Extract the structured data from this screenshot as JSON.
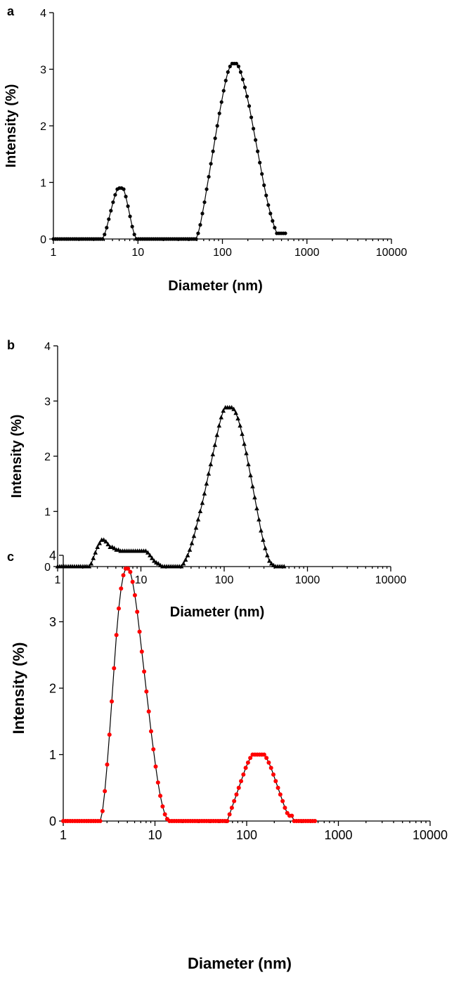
{
  "chart_data": [
    {
      "type": "line",
      "panel_label": "a",
      "xlabel": "Diameter (nm)",
      "ylabel": "Intensity (%)",
      "xscale": "log",
      "xlim": [
        1,
        10000
      ],
      "ylim": [
        0,
        4
      ],
      "xticks": [
        "1",
        "10",
        "100",
        "1000",
        "10000"
      ],
      "yticks": [
        "0",
        "1",
        "2",
        "3",
        "4"
      ],
      "marker": "circle",
      "marker_color": "#000000",
      "line_color": "#000000",
      "series": [
        {
          "x": [
            1.0,
            1.06,
            1.12,
            1.19,
            1.26,
            1.34,
            1.42,
            1.5,
            1.59,
            1.69,
            1.79,
            1.89,
            2.01,
            2.13,
            2.25,
            2.39,
            2.53,
            2.68,
            2.84,
            3.01,
            3.19,
            3.38,
            3.58,
            3.8,
            4.03,
            4.27,
            4.52,
            4.79,
            5.08,
            5.38,
            5.7,
            6.04,
            6.4,
            6.79,
            7.19,
            7.62,
            8.07,
            8.56,
            9.07,
            9.61,
            10.18,
            10.79,
            11.43,
            12.12,
            12.84,
            13.6,
            14.42,
            15.28,
            16.19,
            17.15,
            18.18,
            19.26,
            20.41,
            21.63,
            22.92,
            24.29,
            25.74,
            27.27,
            28.9,
            30.62,
            32.45,
            34.39,
            36.44,
            38.61,
            40.91,
            43.35,
            45.94,
            48.68,
            51.58,
            54.66,
            57.92,
            61.37,
            65.03,
            68.91,
            73.02,
            77.38,
            81.99,
            86.89,
            92.07,
            97.56,
            103.4,
            109.5,
            116.1,
            123.0,
            130.3,
            138.1,
            146.3,
            155.1,
            164.3,
            174.1,
            184.5,
            195.5,
            207.2,
            219.5,
            232.6,
            246.5,
            261.2,
            276.8,
            293.3,
            310.8,
            329.3,
            349.0,
            369.8,
            391.9,
            415.3,
            440.1,
            466.3,
            494.1,
            523.6,
            554.8
          ],
          "y": [
            0,
            0,
            0,
            0,
            0,
            0,
            0,
            0,
            0,
            0,
            0,
            0,
            0,
            0,
            0,
            0,
            0,
            0,
            0,
            0,
            0,
            0,
            0,
            0,
            0.08,
            0.2,
            0.35,
            0.5,
            0.65,
            0.78,
            0.88,
            0.9,
            0.9,
            0.88,
            0.75,
            0.58,
            0.4,
            0.22,
            0.08,
            0,
            0,
            0,
            0,
            0,
            0,
            0,
            0,
            0,
            0,
            0,
            0,
            0,
            0,
            0,
            0,
            0,
            0,
            0,
            0,
            0,
            0,
            0,
            0,
            0,
            0,
            0,
            0,
            0,
            0.1,
            0.25,
            0.45,
            0.65,
            0.88,
            1.1,
            1.33,
            1.55,
            1.78,
            2.0,
            2.22,
            2.42,
            2.62,
            2.8,
            2.95,
            3.05,
            3.1,
            3.1,
            3.1,
            3.05,
            2.95,
            2.82,
            2.68,
            2.52,
            2.35,
            2.15,
            1.95,
            1.75,
            1.55,
            1.35,
            1.15,
            0.95,
            0.77,
            0.6,
            0.45,
            0.32,
            0.2,
            0.1,
            0.1,
            0.1,
            0.1,
            0.1
          ]
        }
      ]
    },
    {
      "type": "line",
      "panel_label": "b",
      "xlabel": "Diameter (nm)",
      "ylabel": "Intensity (%)",
      "xscale": "log",
      "xlim": [
        1,
        10000
      ],
      "ylim": [
        0,
        4
      ],
      "xticks": [
        "1",
        "10",
        "100",
        "1000",
        "10000"
      ],
      "yticks": [
        "0",
        "1",
        "2",
        "3",
        "4"
      ],
      "marker": "triangle",
      "marker_color": "#000000",
      "line_color": "#000000",
      "series": [
        {
          "x": [
            1.0,
            1.06,
            1.12,
            1.19,
            1.26,
            1.34,
            1.42,
            1.5,
            1.59,
            1.69,
            1.79,
            1.89,
            2.01,
            2.13,
            2.25,
            2.39,
            2.53,
            2.68,
            2.84,
            3.01,
            3.19,
            3.38,
            3.58,
            3.8,
            4.03,
            4.27,
            4.52,
            4.79,
            5.08,
            5.38,
            5.7,
            6.04,
            6.4,
            6.79,
            7.19,
            7.62,
            8.07,
            8.56,
            9.07,
            9.61,
            10.18,
            10.79,
            11.43,
            12.12,
            12.84,
            13.6,
            14.42,
            15.28,
            16.19,
            17.15,
            18.18,
            19.26,
            20.41,
            21.63,
            22.92,
            24.29,
            25.74,
            27.27,
            28.9,
            30.62,
            32.45,
            34.39,
            36.44,
            38.61,
            40.91,
            43.35,
            45.94,
            48.68,
            51.58,
            54.66,
            57.92,
            61.37,
            65.03,
            68.91,
            73.02,
            77.38,
            81.99,
            86.89,
            92.07,
            97.56,
            103.4,
            109.5,
            116.1,
            123.0,
            130.3,
            138.1,
            146.3,
            155.1,
            164.3,
            174.1,
            184.5,
            195.5,
            207.2,
            219.5,
            232.6,
            246.5,
            261.2,
            276.8,
            293.3,
            310.8,
            329.3,
            349.0,
            369.8,
            391.9,
            415.3,
            440.1,
            466.3,
            494.1,
            523.6
          ],
          "y": [
            0,
            0,
            0,
            0,
            0,
            0,
            0,
            0,
            0,
            0,
            0,
            0,
            0,
            0,
            0,
            0,
            0.05,
            0.15,
            0.25,
            0.35,
            0.42,
            0.48,
            0.48,
            0.45,
            0.4,
            0.35,
            0.35,
            0.33,
            0.3,
            0.3,
            0.28,
            0.28,
            0.28,
            0.28,
            0.28,
            0.28,
            0.28,
            0.28,
            0.28,
            0.28,
            0.28,
            0.28,
            0.28,
            0.25,
            0.2,
            0.15,
            0.1,
            0.07,
            0.05,
            0.02,
            0,
            0,
            0,
            0,
            0,
            0,
            0,
            0,
            0,
            0,
            0.05,
            0.12,
            0.2,
            0.3,
            0.42,
            0.55,
            0.7,
            0.85,
            1.0,
            1.15,
            1.32,
            1.5,
            1.68,
            1.85,
            2.03,
            2.2,
            2.38,
            2.55,
            2.7,
            2.82,
            2.88,
            2.88,
            2.88,
            2.88,
            2.85,
            2.78,
            2.68,
            2.55,
            2.4,
            2.22,
            2.05,
            1.85,
            1.65,
            1.45,
            1.25,
            1.05,
            0.85,
            0.65,
            0.48,
            0.33,
            0.2,
            0.1,
            0.05,
            0.02,
            0,
            0,
            0,
            0,
            0
          ]
        }
      ]
    },
    {
      "type": "line",
      "panel_label": "c",
      "xlabel": "Diameter (nm)",
      "ylabel": "Intensity (%)",
      "xscale": "log",
      "xlim": [
        1,
        10000
      ],
      "ylim": [
        0,
        4
      ],
      "xticks": [
        "1",
        "10",
        "100",
        "1000",
        "10000"
      ],
      "yticks": [
        "0",
        "1",
        "2",
        "3",
        "4"
      ],
      "marker": "circle",
      "marker_color": "#ff0000",
      "line_color": "#000000",
      "series": [
        {
          "x": [
            1.0,
            1.06,
            1.12,
            1.19,
            1.26,
            1.34,
            1.42,
            1.5,
            1.59,
            1.69,
            1.79,
            1.89,
            2.01,
            2.13,
            2.25,
            2.39,
            2.53,
            2.68,
            2.84,
            3.01,
            3.19,
            3.38,
            3.58,
            3.8,
            4.03,
            4.27,
            4.52,
            4.79,
            5.08,
            5.38,
            5.7,
            6.04,
            6.4,
            6.79,
            7.19,
            7.62,
            8.07,
            8.56,
            9.07,
            9.61,
            10.18,
            10.79,
            11.43,
            12.12,
            12.84,
            13.6,
            14.42,
            15.28,
            16.19,
            17.15,
            18.18,
            19.26,
            20.41,
            21.63,
            22.92,
            24.29,
            25.74,
            27.27,
            28.9,
            30.62,
            32.45,
            34.39,
            36.44,
            38.61,
            40.91,
            43.35,
            45.94,
            48.68,
            51.58,
            54.66,
            57.92,
            61.37,
            65.03,
            68.91,
            73.02,
            77.38,
            81.99,
            86.89,
            92.07,
            97.56,
            103.4,
            109.5,
            116.1,
            123.0,
            130.3,
            138.1,
            146.3,
            155.1,
            164.3,
            174.1,
            184.5,
            195.5,
            207.2,
            219.5,
            232.6,
            246.5,
            261.2,
            276.8,
            293.3,
            310.8,
            329.3,
            349.0,
            369.8,
            391.9,
            415.3,
            440.1,
            466.3,
            494.1,
            523.6,
            554.8
          ],
          "y": [
            0,
            0,
            0,
            0,
            0,
            0,
            0,
            0,
            0,
            0,
            0,
            0,
            0,
            0,
            0,
            0,
            0,
            0.15,
            0.45,
            0.85,
            1.3,
            1.8,
            2.3,
            2.8,
            3.2,
            3.5,
            3.7,
            3.8,
            3.8,
            3.75,
            3.6,
            3.4,
            3.15,
            2.85,
            2.55,
            2.25,
            1.95,
            1.65,
            1.35,
            1.08,
            0.82,
            0.58,
            0.38,
            0.22,
            0.1,
            0.03,
            0,
            0,
            0,
            0,
            0,
            0,
            0,
            0,
            0,
            0,
            0,
            0,
            0,
            0,
            0,
            0,
            0,
            0,
            0,
            0,
            0,
            0,
            0,
            0,
            0,
            0,
            0.1,
            0.2,
            0.3,
            0.4,
            0.5,
            0.6,
            0.7,
            0.8,
            0.88,
            0.95,
            1.0,
            1.0,
            1.0,
            1.0,
            1.0,
            1.0,
            0.95,
            0.88,
            0.8,
            0.7,
            0.6,
            0.5,
            0.4,
            0.3,
            0.2,
            0.12,
            0.08,
            0.08,
            0,
            0,
            0,
            0,
            0,
            0,
            0,
            0,
            0,
            0
          ]
        }
      ]
    }
  ]
}
